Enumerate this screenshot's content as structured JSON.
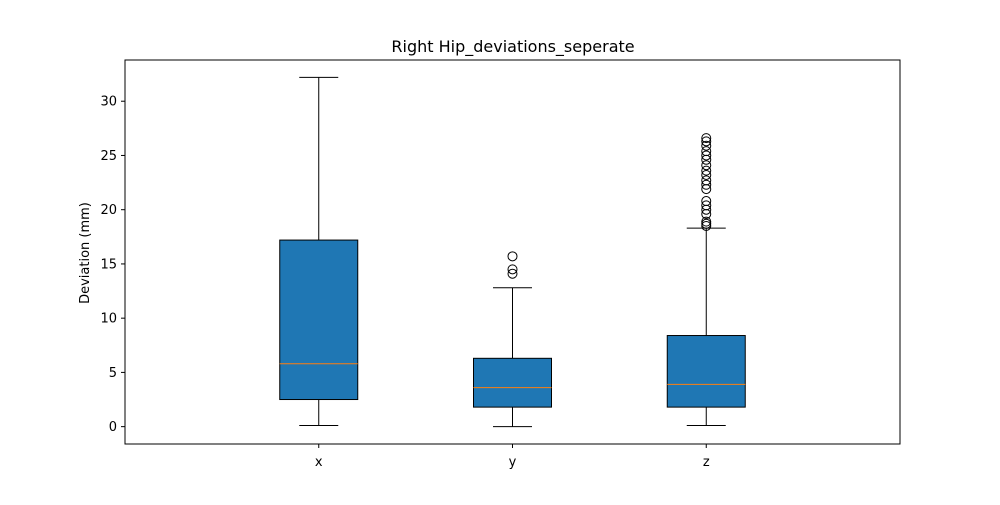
{
  "chart_data": {
    "type": "boxplot",
    "title": "Right Hip_deviations_seperate",
    "xlabel": "",
    "ylabel": "Deviation (mm)",
    "categories": [
      "x",
      "y",
      "z"
    ],
    "ylim": [
      -1.6,
      33.8
    ],
    "yticks": [
      0,
      5,
      10,
      15,
      20,
      25,
      30
    ],
    "grid": false,
    "colors": {
      "box_fill": "#1f77b4",
      "median": "#ff7f0e",
      "edge": "#000000"
    },
    "boxes": [
      {
        "name": "x",
        "whisker_low": 0.1,
        "q1": 2.5,
        "median": 5.8,
        "q3": 17.2,
        "whisker_high": 32.2,
        "outliers": []
      },
      {
        "name": "y",
        "whisker_low": 0.0,
        "q1": 1.8,
        "median": 3.6,
        "q3": 6.3,
        "whisker_high": 12.8,
        "outliers": [
          14.1,
          14.5,
          15.7
        ]
      },
      {
        "name": "z",
        "whisker_low": 0.1,
        "q1": 1.8,
        "median": 3.9,
        "q3": 8.4,
        "whisker_high": 18.3,
        "outliers": [
          18.5,
          18.7,
          18.9,
          19.6,
          20.0,
          20.4,
          20.8,
          21.9,
          22.3,
          22.7,
          23.2,
          23.6,
          24.1,
          24.6,
          25.0,
          25.4,
          25.9,
          26.3,
          26.6
        ]
      }
    ]
  }
}
